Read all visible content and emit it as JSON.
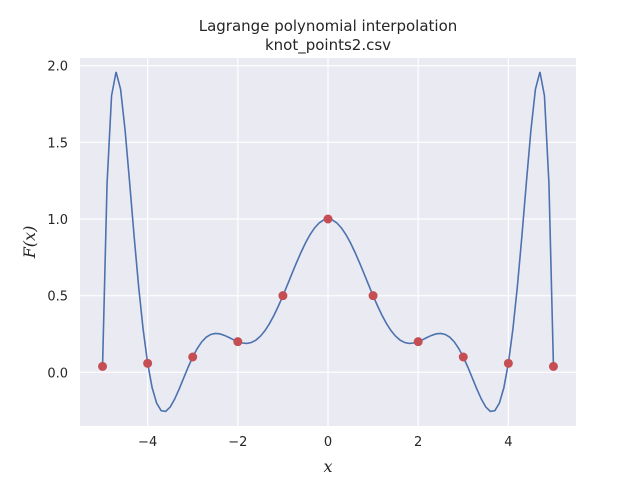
{
  "chart_data": {
    "type": "line",
    "title": "Lagrange polynomial interpolation",
    "subtitle": "knot_points2.csv",
    "xlabel": "x",
    "ylabel": "F(x)",
    "xlim": [
      -5.5,
      5.5
    ],
    "ylim": [
      -0.35,
      2.05
    ],
    "xticks": [
      -4,
      -2,
      0,
      2,
      4
    ],
    "xtick_labels": [
      "−4",
      "−2",
      "0",
      "2",
      "4"
    ],
    "yticks": [
      0.0,
      0.5,
      1.0,
      1.5,
      2.0
    ],
    "ytick_labels": [
      "0.0",
      "0.5",
      "1.0",
      "1.5",
      "2.0"
    ],
    "grid": true,
    "background": "#eaeaf2",
    "line_color": "#4c72b0",
    "point_color": "#c44e52",
    "knots": {
      "x": [
        -5,
        -4,
        -3,
        -2,
        -1,
        0,
        1,
        2,
        3,
        4,
        5
      ],
      "y": [
        0.0385,
        0.0588,
        0.1,
        0.2,
        0.5,
        1.0,
        0.5,
        0.2,
        0.1,
        0.0588,
        0.0385
      ]
    },
    "curve": "lagrange_interpolant_of_knots"
  }
}
